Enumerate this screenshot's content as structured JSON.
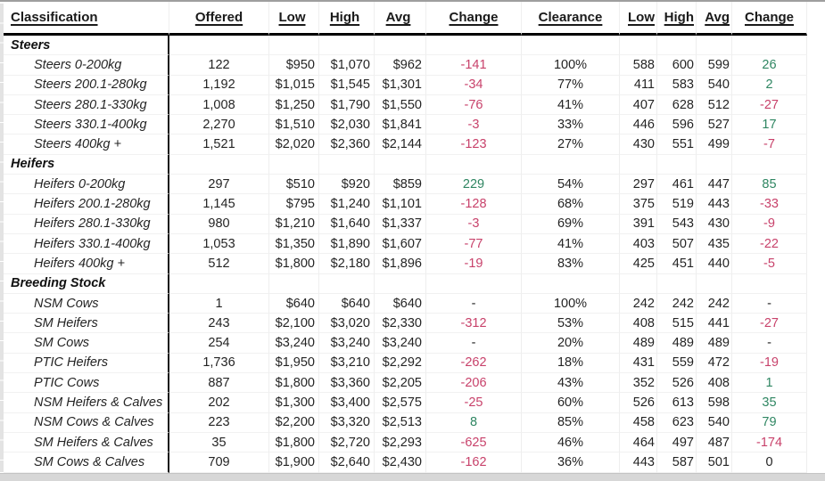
{
  "table": {
    "colors": {
      "positive": "#2f8662",
      "negative": "#c8426b",
      "neutral": "#242424"
    },
    "columns": [
      {
        "key": "classification",
        "label": "Classification",
        "align": "left",
        "header_align": "left"
      },
      {
        "key": "offered",
        "label": "Offered",
        "align": "center",
        "header_align": "center"
      },
      {
        "key": "low",
        "label": "Low",
        "align": "right",
        "header_align": "center"
      },
      {
        "key": "high",
        "label": "High",
        "align": "right",
        "header_align": "center"
      },
      {
        "key": "avg",
        "label": "Avg",
        "align": "right",
        "header_align": "center"
      },
      {
        "key": "change",
        "label": "Change",
        "align": "center",
        "header_align": "center",
        "signed": true
      },
      {
        "key": "clearance",
        "label": "Clearance",
        "align": "center",
        "header_align": "center"
      },
      {
        "key": "low2",
        "label": "Low",
        "align": "right",
        "header_align": "right"
      },
      {
        "key": "high2",
        "label": "High",
        "align": "right",
        "header_align": "right"
      },
      {
        "key": "avg2",
        "label": "Avg",
        "align": "right",
        "header_align": "right"
      },
      {
        "key": "change2",
        "label": "Change",
        "align": "center",
        "header_align": "center",
        "signed": true
      }
    ],
    "sections": [
      {
        "group_label": "Steers",
        "rows": [
          {
            "classification": "Steers 0-200kg",
            "offered": "122",
            "low": "$950",
            "high": "$1,070",
            "avg": "$962",
            "change": "-141",
            "clearance": "100%",
            "low2": "588",
            "high2": "600",
            "avg2": "599",
            "change2": "26"
          },
          {
            "classification": "Steers 200.1-280kg",
            "offered": "1,192",
            "low": "$1,015",
            "high": "$1,545",
            "avg": "$1,301",
            "change": "-34",
            "clearance": "77%",
            "low2": "411",
            "high2": "583",
            "avg2": "540",
            "change2": "2"
          },
          {
            "classification": "Steers 280.1-330kg",
            "offered": "1,008",
            "low": "$1,250",
            "high": "$1,790",
            "avg": "$1,550",
            "change": "-76",
            "clearance": "41%",
            "low2": "407",
            "high2": "628",
            "avg2": "512",
            "change2": "-27"
          },
          {
            "classification": "Steers 330.1-400kg",
            "offered": "2,270",
            "low": "$1,510",
            "high": "$2,030",
            "avg": "$1,841",
            "change": "-3",
            "clearance": "33%",
            "low2": "446",
            "high2": "596",
            "avg2": "527",
            "change2": "17"
          },
          {
            "classification": "Steers 400kg +",
            "offered": "1,521",
            "low": "$2,020",
            "high": "$2,360",
            "avg": "$2,144",
            "change": "-123",
            "clearance": "27%",
            "low2": "430",
            "high2": "551",
            "avg2": "499",
            "change2": "-7"
          }
        ]
      },
      {
        "group_label": "Heifers",
        "rows": [
          {
            "classification": "Heifers 0-200kg",
            "offered": "297",
            "low": "$510",
            "high": "$920",
            "avg": "$859",
            "change": "229",
            "clearance": "54%",
            "low2": "297",
            "high2": "461",
            "avg2": "447",
            "change2": "85"
          },
          {
            "classification": "Heifers 200.1-280kg",
            "offered": "1,145",
            "low": "$795",
            "high": "$1,240",
            "avg": "$1,101",
            "change": "-128",
            "clearance": "68%",
            "low2": "375",
            "high2": "519",
            "avg2": "443",
            "change2": "-33"
          },
          {
            "classification": "Heifers 280.1-330kg",
            "offered": "980",
            "low": "$1,210",
            "high": "$1,640",
            "avg": "$1,337",
            "change": "-3",
            "clearance": "69%",
            "low2": "391",
            "high2": "543",
            "avg2": "430",
            "change2": "-9"
          },
          {
            "classification": "Heifers 330.1-400kg",
            "offered": "1,053",
            "low": "$1,350",
            "high": "$1,890",
            "avg": "$1,607",
            "change": "-77",
            "clearance": "41%",
            "low2": "403",
            "high2": "507",
            "avg2": "435",
            "change2": "-22"
          },
          {
            "classification": "Heifers 400kg +",
            "offered": "512",
            "low": "$1,800",
            "high": "$2,180",
            "avg": "$1,896",
            "change": "-19",
            "clearance": "83%",
            "low2": "425",
            "high2": "451",
            "avg2": "440",
            "change2": "-5"
          }
        ]
      },
      {
        "group_label": "Breeding Stock",
        "rows": [
          {
            "classification": "NSM Cows",
            "offered": "1",
            "low": "$640",
            "high": "$640",
            "avg": "$640",
            "change": "-",
            "clearance": "100%",
            "low2": "242",
            "high2": "242",
            "avg2": "242",
            "change2": "-"
          },
          {
            "classification": "SM Heifers",
            "offered": "243",
            "low": "$2,100",
            "high": "$3,020",
            "avg": "$2,330",
            "change": "-312",
            "clearance": "53%",
            "low2": "408",
            "high2": "515",
            "avg2": "441",
            "change2": "-27"
          },
          {
            "classification": "SM Cows",
            "offered": "254",
            "low": "$3,240",
            "high": "$3,240",
            "avg": "$3,240",
            "change": "-",
            "clearance": "20%",
            "low2": "489",
            "high2": "489",
            "avg2": "489",
            "change2": "-"
          },
          {
            "classification": "PTIC Heifers",
            "offered": "1,736",
            "low": "$1,950",
            "high": "$3,210",
            "avg": "$2,292",
            "change": "-262",
            "clearance": "18%",
            "low2": "431",
            "high2": "559",
            "avg2": "472",
            "change2": "-19"
          },
          {
            "classification": "PTIC Cows",
            "offered": "887",
            "low": "$1,800",
            "high": "$3,360",
            "avg": "$2,205",
            "change": "-206",
            "clearance": "43%",
            "low2": "352",
            "high2": "526",
            "avg2": "408",
            "change2": "1"
          },
          {
            "classification": "NSM Heifers & Calves",
            "offered": "202",
            "low": "$1,300",
            "high": "$3,400",
            "avg": "$2,575",
            "change": "-25",
            "clearance": "60%",
            "low2": "526",
            "high2": "613",
            "avg2": "598",
            "change2": "35"
          },
          {
            "classification": "NSM Cows & Calves",
            "offered": "223",
            "low": "$2,200",
            "high": "$3,320",
            "avg": "$2,513",
            "change": "8",
            "clearance": "85%",
            "low2": "458",
            "high2": "623",
            "avg2": "540",
            "change2": "79"
          },
          {
            "classification": "SM Heifers & Calves",
            "offered": "35",
            "low": "$1,800",
            "high": "$2,720",
            "avg": "$2,293",
            "change": "-625",
            "clearance": "46%",
            "low2": "464",
            "high2": "497",
            "avg2": "487",
            "change2": "-174"
          },
          {
            "classification": "SM Cows & Calves",
            "offered": "709",
            "low": "$1,900",
            "high": "$2,640",
            "avg": "$2,430",
            "change": "-162",
            "clearance": "36%",
            "low2": "443",
            "high2": "587",
            "avg2": "501",
            "change2": "0"
          }
        ]
      }
    ]
  }
}
